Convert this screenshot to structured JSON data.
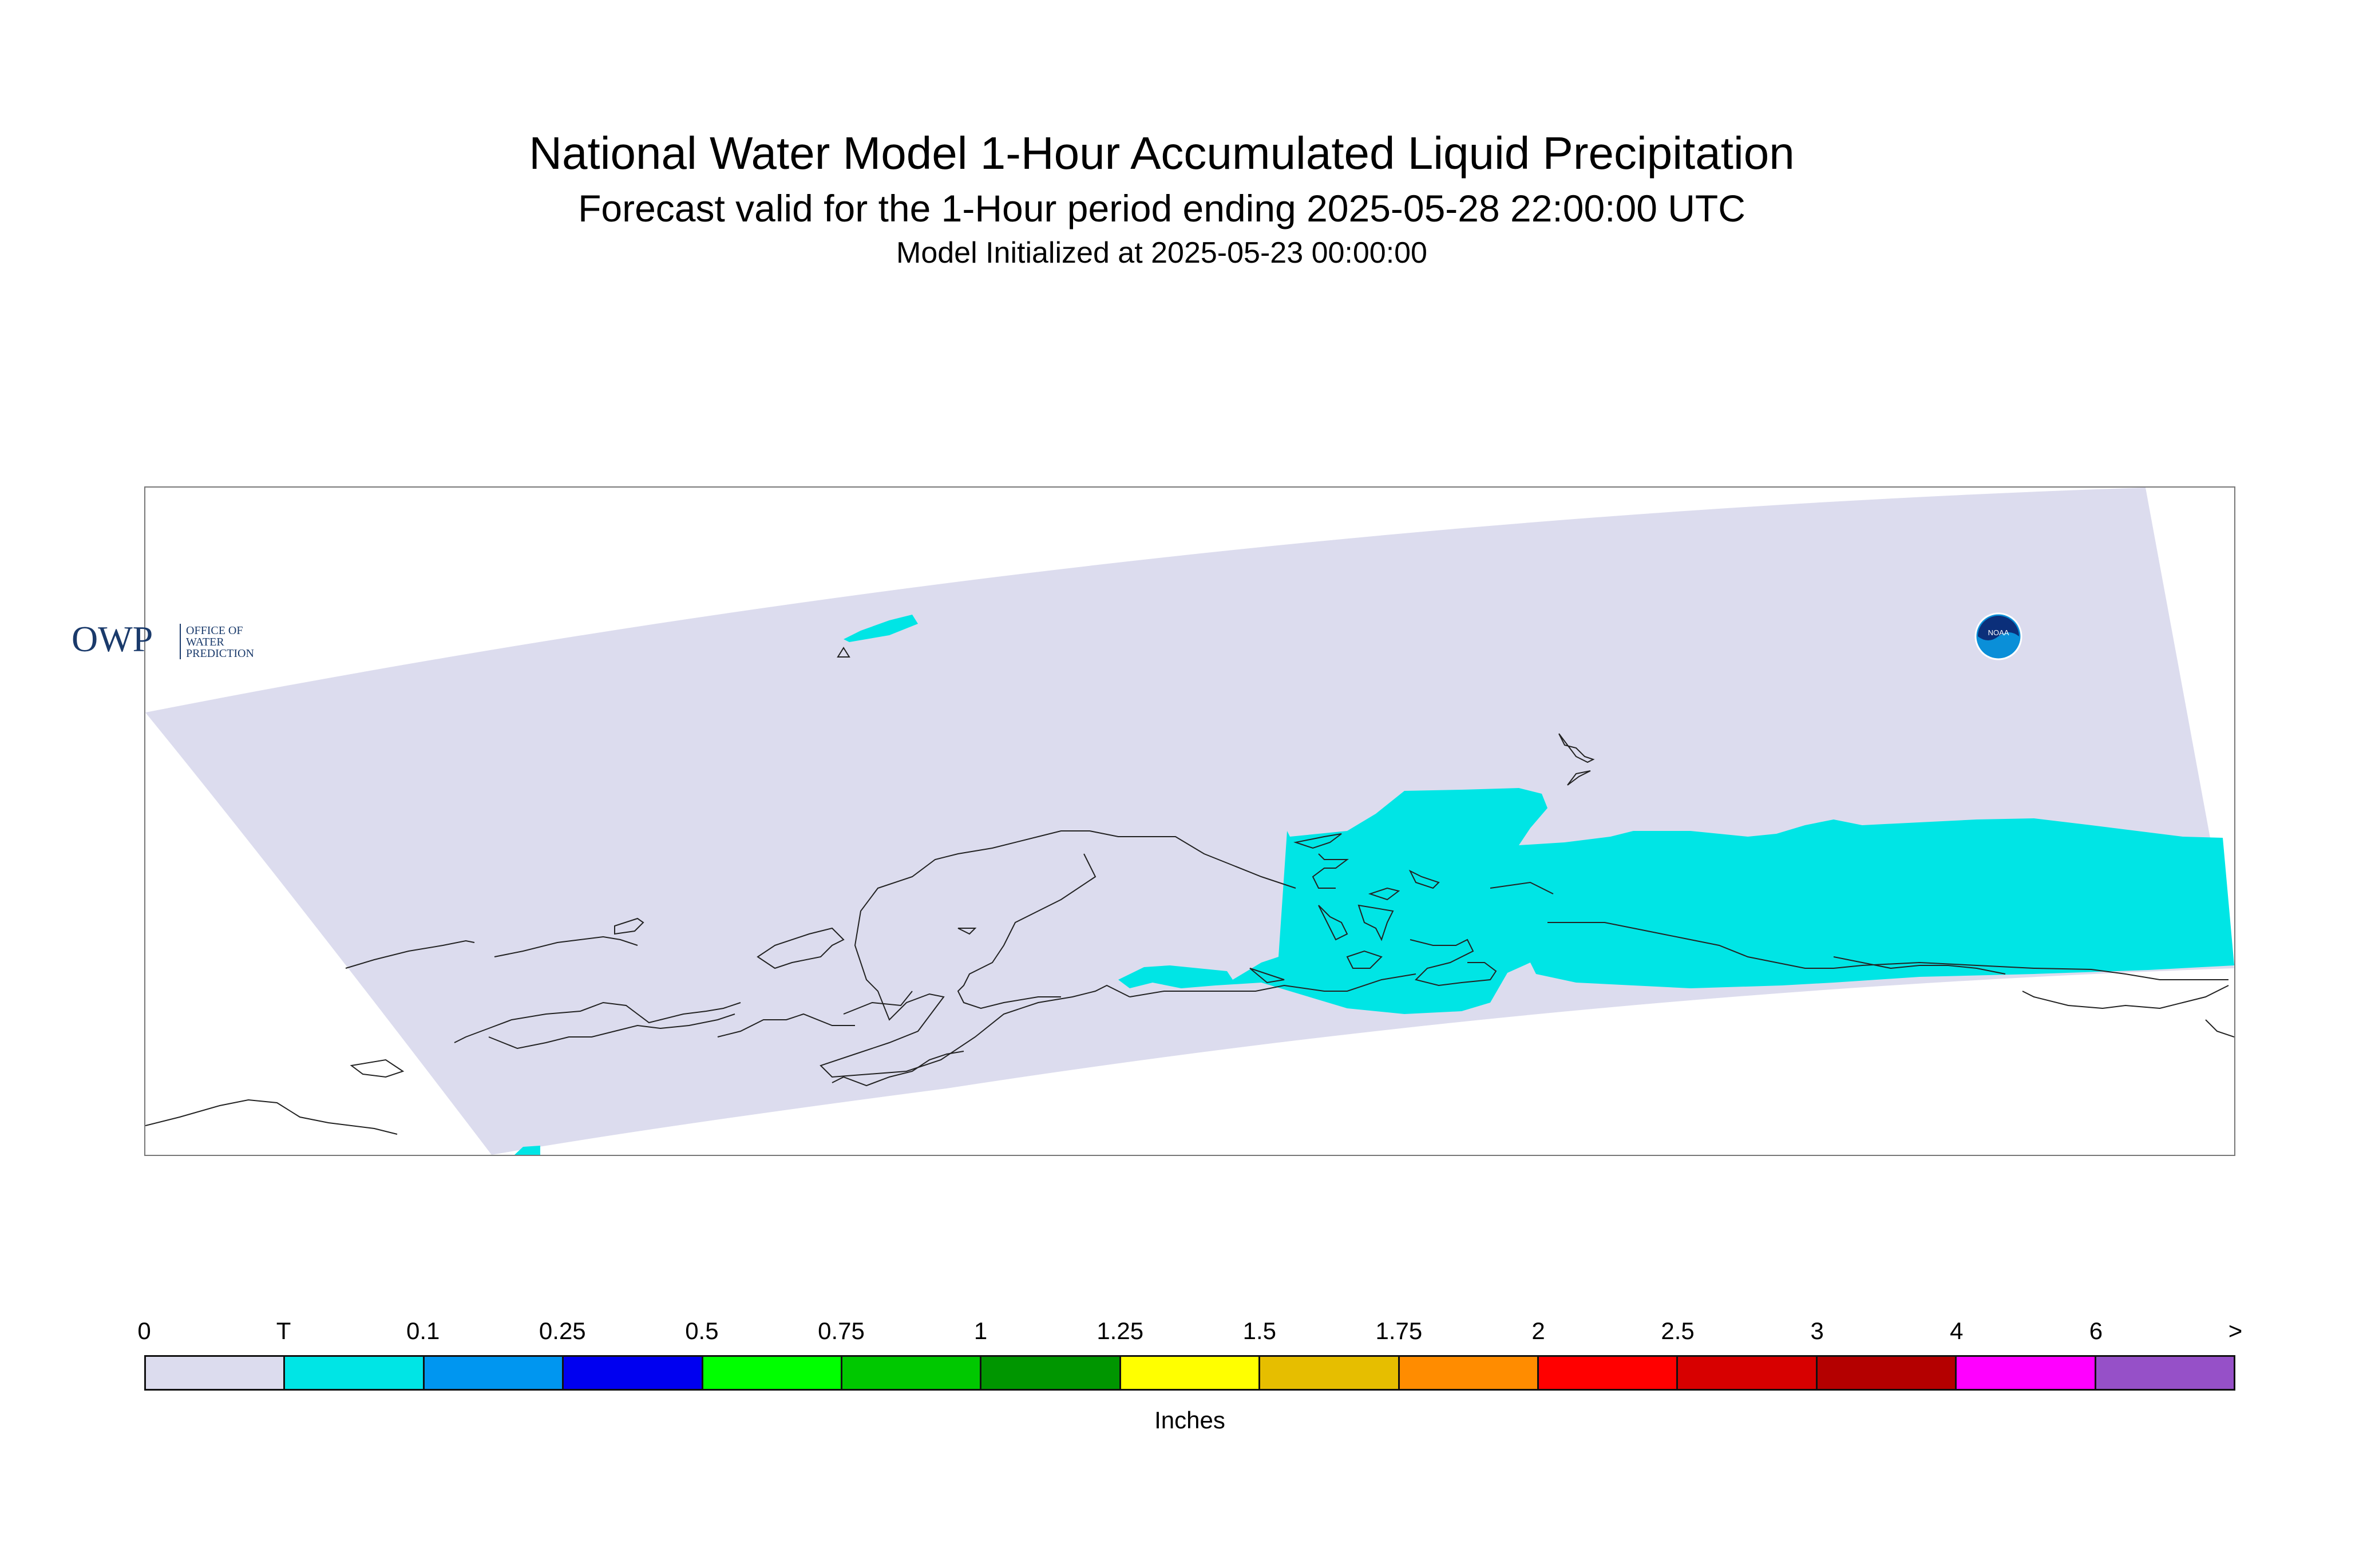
{
  "header": {
    "title": "National Water Model 1-Hour Accumulated Liquid Precipitation",
    "subtitle": "Forecast valid for the 1-Hour period ending 2025-05-28 22:00:00 UTC",
    "init_line": "Model Initialized at 2025-05-23 00:00:00"
  },
  "colors": {
    "domain_fill": "#dcdcee",
    "precip_trace": "#00e5e5",
    "coastline": "#222222",
    "frame": "#777777"
  },
  "logos": {
    "owp_text": "OWP",
    "owp_lines": [
      "OFFICE OF",
      "WATER",
      "PREDICTION"
    ],
    "noaa_text": "NOAA"
  },
  "legend": {
    "ticks": [
      "0",
      "T",
      "0.1",
      "0.25",
      "0.5",
      "0.75",
      "1",
      "1.25",
      "1.5",
      "1.75",
      "2",
      "2.5",
      "3",
      "4",
      "6",
      ">"
    ],
    "colors": [
      "#dcdcee",
      "#00e5e5",
      "#0096f0",
      "#0000f0",
      "#00ff00",
      "#00c800",
      "#009600",
      "#ffff00",
      "#e6be00",
      "#ff8c00",
      "#ff0000",
      "#d70000",
      "#b40000",
      "#ff00ff",
      "#9650c8"
    ],
    "units": "Inches"
  }
}
